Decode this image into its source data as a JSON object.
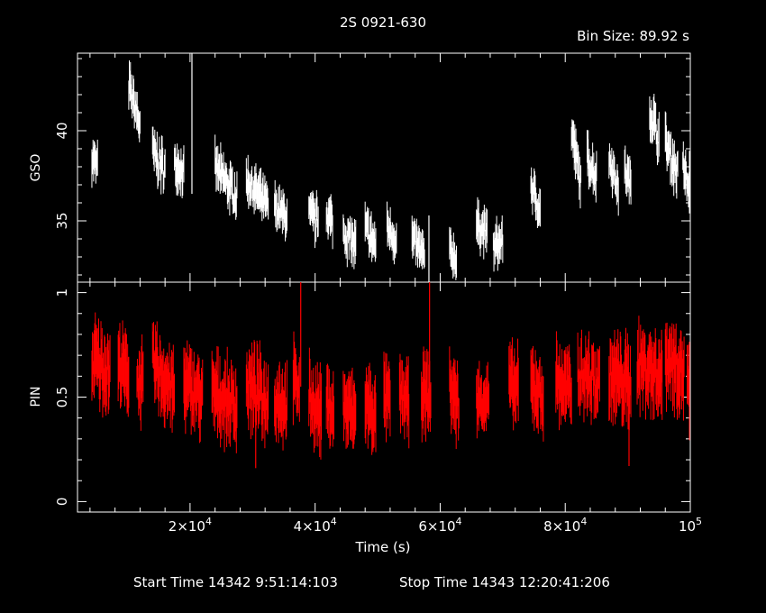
{
  "title": "2S 0921-630",
  "bin_size": "Bin Size: 89.92 s",
  "footer": {
    "start": "Start Time 14342  9:51:14:103",
    "stop": "Stop Time 14343 12:20:41:206"
  },
  "colors": {
    "gso": "#ffffff",
    "pin": "#ff0000",
    "axes": "#ffffff",
    "background": "#000000"
  },
  "chart_data": [
    {
      "type": "scatter",
      "panel": "top",
      "ylabel": "GSO",
      "xlabel": "",
      "xlim": [
        2000,
        100000
      ],
      "ylim": [
        31.6,
        44.3
      ],
      "yticks": [
        {
          "label": "35",
          "value": 35
        },
        {
          "label": "40",
          "value": 40
        }
      ],
      "series": [
        {
          "color": "#ffffff",
          "segments": [
            {
              "x0": 4300,
              "x1": 5200,
              "ystart": 38.5,
              "yend": 38.0,
              "amp": 0.6,
              "err": 0.8
            },
            {
              "x0": 10200,
              "x1": 12000,
              "ystart": 42.5,
              "yend": 40.3,
              "amp": 0.7,
              "err": 0.8
            },
            {
              "x0": 14000,
              "x1": 16000,
              "ystart": 38.8,
              "yend": 37.8,
              "amp": 0.8,
              "err": 0.8
            },
            {
              "x0": 17500,
              "x1": 19000,
              "ystart": 38.2,
              "yend": 37.7,
              "amp": 0.6,
              "err": 0.8
            },
            {
              "x0": 24000,
              "x1": 27500,
              "ystart": 38.0,
              "yend": 36.3,
              "amp": 0.7,
              "err": 0.8
            },
            {
              "x0": 29000,
              "x1": 32500,
              "ystart": 37.3,
              "yend": 35.8,
              "amp": 0.6,
              "err": 0.8
            },
            {
              "x0": 33500,
              "x1": 35500,
              "ystart": 35.8,
              "yend": 35.2,
              "amp": 0.6,
              "err": 0.8
            },
            {
              "x0": 39000,
              "x1": 40500,
              "ystart": 35.3,
              "yend": 35.0,
              "amp": 0.7,
              "err": 0.8
            },
            {
              "x0": 41800,
              "x1": 42800,
              "ystart": 35.5,
              "yend": 34.9,
              "amp": 0.6,
              "err": 0.8
            },
            {
              "x0": 44500,
              "x1": 46500,
              "ystart": 34.4,
              "yend": 33.6,
              "amp": 0.7,
              "err": 0.8
            },
            {
              "x0": 48000,
              "x1": 49700,
              "ystart": 34.6,
              "yend": 33.6,
              "amp": 0.7,
              "err": 0.8
            },
            {
              "x0": 51500,
              "x1": 53000,
              "ystart": 34.7,
              "yend": 33.9,
              "amp": 0.6,
              "err": 0.8
            },
            {
              "x0": 55500,
              "x1": 57500,
              "ystart": 34.0,
              "yend": 33.0,
              "amp": 0.6,
              "err": 0.8
            },
            {
              "x0": 61500,
              "x1": 62600,
              "ystart": 33.4,
              "yend": 32.8,
              "amp": 0.5,
              "err": 0.8
            },
            {
              "x0": 65800,
              "x1": 67500,
              "ystart": 34.8,
              "yend": 34.3,
              "amp": 0.6,
              "err": 0.8
            },
            {
              "x0": 68500,
              "x1": 70000,
              "ystart": 33.5,
              "yend": 33.9,
              "amp": 0.6,
              "err": 0.8
            },
            {
              "x0": 74500,
              "x1": 76000,
              "ystart": 37.0,
              "yend": 35.5,
              "amp": 0.6,
              "err": 0.8
            },
            {
              "x0": 81000,
              "x1": 82500,
              "ystart": 40.0,
              "yend": 37.0,
              "amp": 0.7,
              "err": 0.8
            },
            {
              "x0": 83500,
              "x1": 85000,
              "ystart": 38.5,
              "yend": 37.5,
              "amp": 0.7,
              "err": 0.8
            },
            {
              "x0": 87000,
              "x1": 88500,
              "ystart": 38.5,
              "yend": 36.8,
              "amp": 0.6,
              "err": 0.8
            },
            {
              "x0": 89500,
              "x1": 90500,
              "ystart": 37.8,
              "yend": 37.0,
              "amp": 0.6,
              "err": 0.8
            },
            {
              "x0": 93500,
              "x1": 95000,
              "ystart": 41.2,
              "yend": 39.5,
              "amp": 0.8,
              "err": 0.9
            },
            {
              "x0": 96000,
              "x1": 98000,
              "ystart": 39.4,
              "yend": 37.6,
              "amp": 0.7,
              "err": 0.9
            },
            {
              "x0": 98800,
              "x1": 99800,
              "ystart": 38.2,
              "yend": 36.6,
              "amp": 0.6,
              "err": 0.8
            },
            {
              "x0": 100600,
              "x1": 101500,
              "ystart": 37.6,
              "yend": 36.8,
              "amp": 0.6,
              "err": 0.8
            }
          ],
          "spikes": [
            {
              "x": 20300,
              "ylow": 36.5,
              "yhigh": 44.3
            },
            {
              "x": 58200,
              "ylow": 31.6,
              "yhigh": 35.3
            }
          ]
        }
      ]
    },
    {
      "type": "scatter",
      "panel": "bottom",
      "ylabel": "PIN",
      "xlabel": "Time (s)",
      "xlim": [
        2000,
        100000
      ],
      "ylim": [
        -0.05,
        1.05
      ],
      "yticks": [
        {
          "label": "0",
          "value": 0
        },
        {
          "label": "0.5",
          "value": 0.5
        },
        {
          "label": "1",
          "value": 1
        }
      ],
      "xticks": [
        {
          "base": "2×10",
          "exp": "4",
          "value": 20000
        },
        {
          "base": "4×10",
          "exp": "4",
          "value": 40000
        },
        {
          "base": "6×10",
          "exp": "4",
          "value": 60000
        },
        {
          "base": "8×10",
          "exp": "4",
          "value": 80000
        },
        {
          "base": "10",
          "exp": "5",
          "value": 100000
        }
      ],
      "series": [
        {
          "color": "#ff0000",
          "segments": [
            {
              "x0": 4300,
              "x1": 7200,
              "ystart": 0.68,
              "yend": 0.62,
              "amp": 0.1,
              "err": 0.12
            },
            {
              "x0": 8500,
              "x1": 10200,
              "ystart": 0.66,
              "yend": 0.6,
              "amp": 0.08,
              "err": 0.12
            },
            {
              "x0": 11500,
              "x1": 12500,
              "ystart": 0.58,
              "yend": 0.56,
              "amp": 0.08,
              "err": 0.12
            },
            {
              "x0": 14000,
              "x1": 17500,
              "ystart": 0.66,
              "yend": 0.52,
              "amp": 0.1,
              "err": 0.12
            },
            {
              "x0": 19000,
              "x1": 22000,
              "ystart": 0.56,
              "yend": 0.5,
              "amp": 0.09,
              "err": 0.12
            },
            {
              "x0": 23500,
              "x1": 27500,
              "ystart": 0.52,
              "yend": 0.46,
              "amp": 0.09,
              "err": 0.12
            },
            {
              "x0": 29000,
              "x1": 32500,
              "ystart": 0.56,
              "yend": 0.48,
              "amp": 0.1,
              "err": 0.12
            },
            {
              "x0": 33500,
              "x1": 35500,
              "ystart": 0.5,
              "yend": 0.46,
              "amp": 0.09,
              "err": 0.12
            },
            {
              "x0": 36500,
              "x1": 37500,
              "ystart": 0.58,
              "yend": 0.54,
              "amp": 0.08,
              "err": 0.12
            },
            {
              "x0": 39000,
              "x1": 41000,
              "ystart": 0.5,
              "yend": 0.42,
              "amp": 0.09,
              "err": 0.12
            },
            {
              "x0": 41800,
              "x1": 43000,
              "ystart": 0.48,
              "yend": 0.42,
              "amp": 0.08,
              "err": 0.12
            },
            {
              "x0": 44500,
              "x1": 46500,
              "ystart": 0.46,
              "yend": 0.4,
              "amp": 0.09,
              "err": 0.12
            },
            {
              "x0": 48000,
              "x1": 49700,
              "ystart": 0.48,
              "yend": 0.4,
              "amp": 0.08,
              "err": 0.12
            },
            {
              "x0": 51000,
              "x1": 52000,
              "ystart": 0.5,
              "yend": 0.48,
              "amp": 0.08,
              "err": 0.12
            },
            {
              "x0": 53500,
              "x1": 55000,
              "ystart": 0.52,
              "yend": 0.46,
              "amp": 0.08,
              "err": 0.12
            },
            {
              "x0": 57000,
              "x1": 58500,
              "ystart": 0.52,
              "yend": 0.5,
              "amp": 0.08,
              "err": 0.12
            },
            {
              "x0": 61500,
              "x1": 63000,
              "ystart": 0.55,
              "yend": 0.46,
              "amp": 0.09,
              "err": 0.12
            },
            {
              "x0": 65800,
              "x1": 67800,
              "ystart": 0.48,
              "yend": 0.5,
              "amp": 0.07,
              "err": 0.1
            },
            {
              "x0": 71000,
              "x1": 72500,
              "ystart": 0.56,
              "yend": 0.54,
              "amp": 0.08,
              "err": 0.12
            },
            {
              "x0": 74500,
              "x1": 76500,
              "ystart": 0.56,
              "yend": 0.5,
              "amp": 0.08,
              "err": 0.12
            },
            {
              "x0": 78500,
              "x1": 81000,
              "ystart": 0.58,
              "yend": 0.52,
              "amp": 0.09,
              "err": 0.12
            },
            {
              "x0": 82000,
              "x1": 85500,
              "ystart": 0.62,
              "yend": 0.56,
              "amp": 0.1,
              "err": 0.12
            },
            {
              "x0": 87000,
              "x1": 90500,
              "ystart": 0.6,
              "yend": 0.56,
              "amp": 0.1,
              "err": 0.13
            },
            {
              "x0": 91500,
              "x1": 95500,
              "ystart": 0.66,
              "yend": 0.6,
              "amp": 0.1,
              "err": 0.13
            },
            {
              "x0": 96000,
              "x1": 99000,
              "ystart": 0.7,
              "yend": 0.62,
              "amp": 0.1,
              "err": 0.13
            },
            {
              "x0": 99500,
              "x1": 101500,
              "ystart": 0.58,
              "yend": 0.5,
              "amp": 0.08,
              "err": 0.12
            }
          ],
          "spikes": [
            {
              "x": 37700,
              "ylow": 0.55,
              "yhigh": 1.05
            },
            {
              "x": 58300,
              "ylow": 0.45,
              "yhigh": 1.05
            },
            {
              "x": 30500,
              "ylow": 0.16,
              "yhigh": 0.5
            },
            {
              "x": 90200,
              "ylow": 0.17,
              "yhigh": 0.55
            }
          ]
        }
      ]
    }
  ]
}
